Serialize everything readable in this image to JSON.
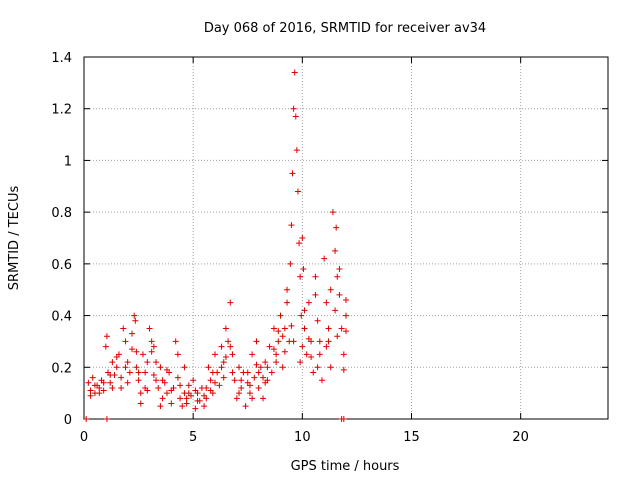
{
  "chart_data": {
    "type": "scatter",
    "title": "Day 068 of 2016, SRMTID for receiver av34",
    "xlabel": "GPS time / hours",
    "ylabel": "SRMTID / TECUs",
    "xlim": [
      0,
      24
    ],
    "ylim": [
      0,
      1.4
    ],
    "xticks": [
      "0",
      "5",
      "10",
      "15",
      "20"
    ],
    "yticks": [
      "0",
      "0.2",
      "0.4",
      "0.6",
      "0.8",
      "1",
      "1.2",
      "1.4"
    ],
    "grid": true,
    "marker": "plus",
    "color": "#e00000",
    "series": [
      {
        "name": "SRMTID",
        "points": [
          [
            0.1,
            0.0
          ],
          [
            1.05,
            0.0
          ],
          [
            11.8,
            0.0
          ],
          [
            11.9,
            0.0
          ],
          [
            0.2,
            0.14
          ],
          [
            0.3,
            0.11
          ],
          [
            0.4,
            0.16
          ],
          [
            0.5,
            0.1
          ],
          [
            0.6,
            0.13
          ],
          [
            0.7,
            0.12
          ],
          [
            0.8,
            0.15
          ],
          [
            0.9,
            0.11
          ],
          [
            1.0,
            0.28
          ],
          [
            1.05,
            0.32
          ],
          [
            1.1,
            0.18
          ],
          [
            1.2,
            0.14
          ],
          [
            1.3,
            0.22
          ],
          [
            1.4,
            0.17
          ],
          [
            1.5,
            0.2
          ],
          [
            1.6,
            0.25
          ],
          [
            1.7,
            0.12
          ],
          [
            1.8,
            0.35
          ],
          [
            1.9,
            0.3
          ],
          [
            2.0,
            0.22
          ],
          [
            2.1,
            0.18
          ],
          [
            2.2,
            0.27
          ],
          [
            2.3,
            0.4
          ],
          [
            2.35,
            0.38
          ],
          [
            2.4,
            0.2
          ],
          [
            2.5,
            0.15
          ],
          [
            2.6,
            0.1
          ],
          [
            2.7,
            0.25
          ],
          [
            2.8,
            0.18
          ],
          [
            2.9,
            0.22
          ],
          [
            3.0,
            0.35
          ],
          [
            3.1,
            0.3
          ],
          [
            3.2,
            0.28
          ],
          [
            3.3,
            0.15
          ],
          [
            3.4,
            0.12
          ],
          [
            3.5,
            0.2
          ],
          [
            3.6,
            0.08
          ],
          [
            3.7,
            0.14
          ],
          [
            3.8,
            0.1
          ],
          [
            3.9,
            0.18
          ],
          [
            4.0,
            0.06
          ],
          [
            4.1,
            0.12
          ],
          [
            4.2,
            0.3
          ],
          [
            4.3,
            0.25
          ],
          [
            4.4,
            0.08
          ],
          [
            4.5,
            0.05
          ],
          [
            4.6,
            0.1
          ],
          [
            4.7,
            0.06
          ],
          [
            4.8,
            0.13
          ],
          [
            4.9,
            0.09
          ],
          [
            5.0,
            0.15
          ],
          [
            5.1,
            0.04
          ],
          [
            5.2,
            0.1
          ],
          [
            5.3,
            0.07
          ],
          [
            5.4,
            0.12
          ],
          [
            5.5,
            0.05
          ],
          [
            5.6,
            0.08
          ],
          [
            5.7,
            0.2
          ],
          [
            5.8,
            0.15
          ],
          [
            5.9,
            0.1
          ],
          [
            6.0,
            0.25
          ],
          [
            6.1,
            0.18
          ],
          [
            6.2,
            0.13
          ],
          [
            6.3,
            0.28
          ],
          [
            6.4,
            0.22
          ],
          [
            6.5,
            0.35
          ],
          [
            6.6,
            0.3
          ],
          [
            6.7,
            0.45
          ],
          [
            6.8,
            0.25
          ],
          [
            6.9,
            0.15
          ],
          [
            7.0,
            0.08
          ],
          [
            7.1,
            0.2
          ],
          [
            7.2,
            0.12
          ],
          [
            7.3,
            0.18
          ],
          [
            7.4,
            0.05
          ],
          [
            7.5,
            0.14
          ],
          [
            7.6,
            0.1
          ],
          [
            7.7,
            0.25
          ],
          [
            7.8,
            0.16
          ],
          [
            7.9,
            0.3
          ],
          [
            8.0,
            0.12
          ],
          [
            8.1,
            0.2
          ],
          [
            8.2,
            0.08
          ],
          [
            8.3,
            0.22
          ],
          [
            8.4,
            0.15
          ],
          [
            8.5,
            0.28
          ],
          [
            8.6,
            0.18
          ],
          [
            8.7,
            0.35
          ],
          [
            8.8,
            0.25
          ],
          [
            8.9,
            0.3
          ],
          [
            9.0,
            0.4
          ],
          [
            9.1,
            0.2
          ],
          [
            9.2,
            0.35
          ],
          [
            9.3,
            0.45
          ],
          [
            9.4,
            0.3
          ],
          [
            9.45,
            0.6
          ],
          [
            9.5,
            0.75
          ],
          [
            9.55,
            0.95
          ],
          [
            9.6,
            1.2
          ],
          [
            9.65,
            1.34
          ],
          [
            9.7,
            1.17
          ],
          [
            9.75,
            1.04
          ],
          [
            9.8,
            0.88
          ],
          [
            9.85,
            0.68
          ],
          [
            9.9,
            0.55
          ],
          [
            9.95,
            0.4
          ],
          [
            10.0,
            0.7
          ],
          [
            10.05,
            0.58
          ],
          [
            10.1,
            0.35
          ],
          [
            10.2,
            0.25
          ],
          [
            10.3,
            0.45
          ],
          [
            10.4,
            0.3
          ],
          [
            10.5,
            0.18
          ],
          [
            10.6,
            0.55
          ],
          [
            10.7,
            0.38
          ],
          [
            10.8,
            0.25
          ],
          [
            10.9,
            0.15
          ],
          [
            11.0,
            0.62
          ],
          [
            11.1,
            0.45
          ],
          [
            11.2,
            0.3
          ],
          [
            11.3,
            0.2
          ],
          [
            11.4,
            0.8
          ],
          [
            11.5,
            0.65
          ],
          [
            11.55,
            0.74
          ],
          [
            11.6,
            0.55
          ],
          [
            11.7,
            0.48
          ],
          [
            11.8,
            0.35
          ],
          [
            11.9,
            0.25
          ],
          [
            12.0,
            0.4
          ],
          [
            12.0,
            0.46
          ],
          [
            0.5,
            0.13
          ],
          [
            0.9,
            0.14
          ],
          [
            1.2,
            0.17
          ],
          [
            1.7,
            0.16
          ],
          [
            2.0,
            0.14
          ],
          [
            2.5,
            0.18
          ],
          [
            2.8,
            0.12
          ],
          [
            3.2,
            0.17
          ],
          [
            3.6,
            0.15
          ],
          [
            4.0,
            0.11
          ],
          [
            4.4,
            0.13
          ],
          [
            4.8,
            0.1
          ],
          [
            5.2,
            0.07
          ],
          [
            5.6,
            0.12
          ],
          [
            6.0,
            0.14
          ],
          [
            6.4,
            0.16
          ],
          [
            6.8,
            0.18
          ],
          [
            7.2,
            0.15
          ],
          [
            7.6,
            0.13
          ],
          [
            8.0,
            0.18
          ],
          [
            8.4,
            0.2
          ],
          [
            8.8,
            0.22
          ],
          [
            9.2,
            0.26
          ],
          [
            9.6,
            0.3
          ],
          [
            10.0,
            0.28
          ],
          [
            10.4,
            0.24
          ],
          [
            10.8,
            0.3
          ],
          [
            11.2,
            0.35
          ],
          [
            11.6,
            0.32
          ],
          [
            12.0,
            0.34
          ],
          [
            0.3,
            0.09
          ],
          [
            0.7,
            0.1
          ],
          [
            1.3,
            0.12
          ],
          [
            1.9,
            0.2
          ],
          [
            2.4,
            0.26
          ],
          [
            2.9,
            0.11
          ],
          [
            3.3,
            0.22
          ],
          [
            3.8,
            0.19
          ],
          [
            4.3,
            0.16
          ],
          [
            4.7,
            0.08
          ],
          [
            5.1,
            0.11
          ],
          [
            5.5,
            0.09
          ],
          [
            5.9,
            0.18
          ],
          [
            6.3,
            0.2
          ],
          [
            6.7,
            0.28
          ],
          [
            7.1,
            0.1
          ],
          [
            7.5,
            0.18
          ],
          [
            7.9,
            0.21
          ],
          [
            8.3,
            0.14
          ],
          [
            8.7,
            0.27
          ],
          [
            9.1,
            0.32
          ],
          [
            9.5,
            0.36
          ],
          [
            9.9,
            0.22
          ],
          [
            10.3,
            0.31
          ],
          [
            10.7,
            0.2
          ],
          [
            11.1,
            0.28
          ],
          [
            11.5,
            0.42
          ],
          [
            11.9,
            0.19
          ],
          [
            1.5,
            0.24
          ],
          [
            2.2,
            0.33
          ],
          [
            3.1,
            0.26
          ],
          [
            5.8,
            0.11
          ],
          [
            6.5,
            0.24
          ],
          [
            8.2,
            0.16
          ],
          [
            8.9,
            0.34
          ],
          [
            9.3,
            0.5
          ],
          [
            10.1,
            0.42
          ],
          [
            10.6,
            0.48
          ],
          [
            11.3,
            0.5
          ],
          [
            11.7,
            0.58
          ],
          [
            4.6,
            0.2
          ],
          [
            7.7,
            0.08
          ],
          [
            3.5,
            0.05
          ],
          [
            2.6,
            0.06
          ]
        ]
      }
    ]
  }
}
